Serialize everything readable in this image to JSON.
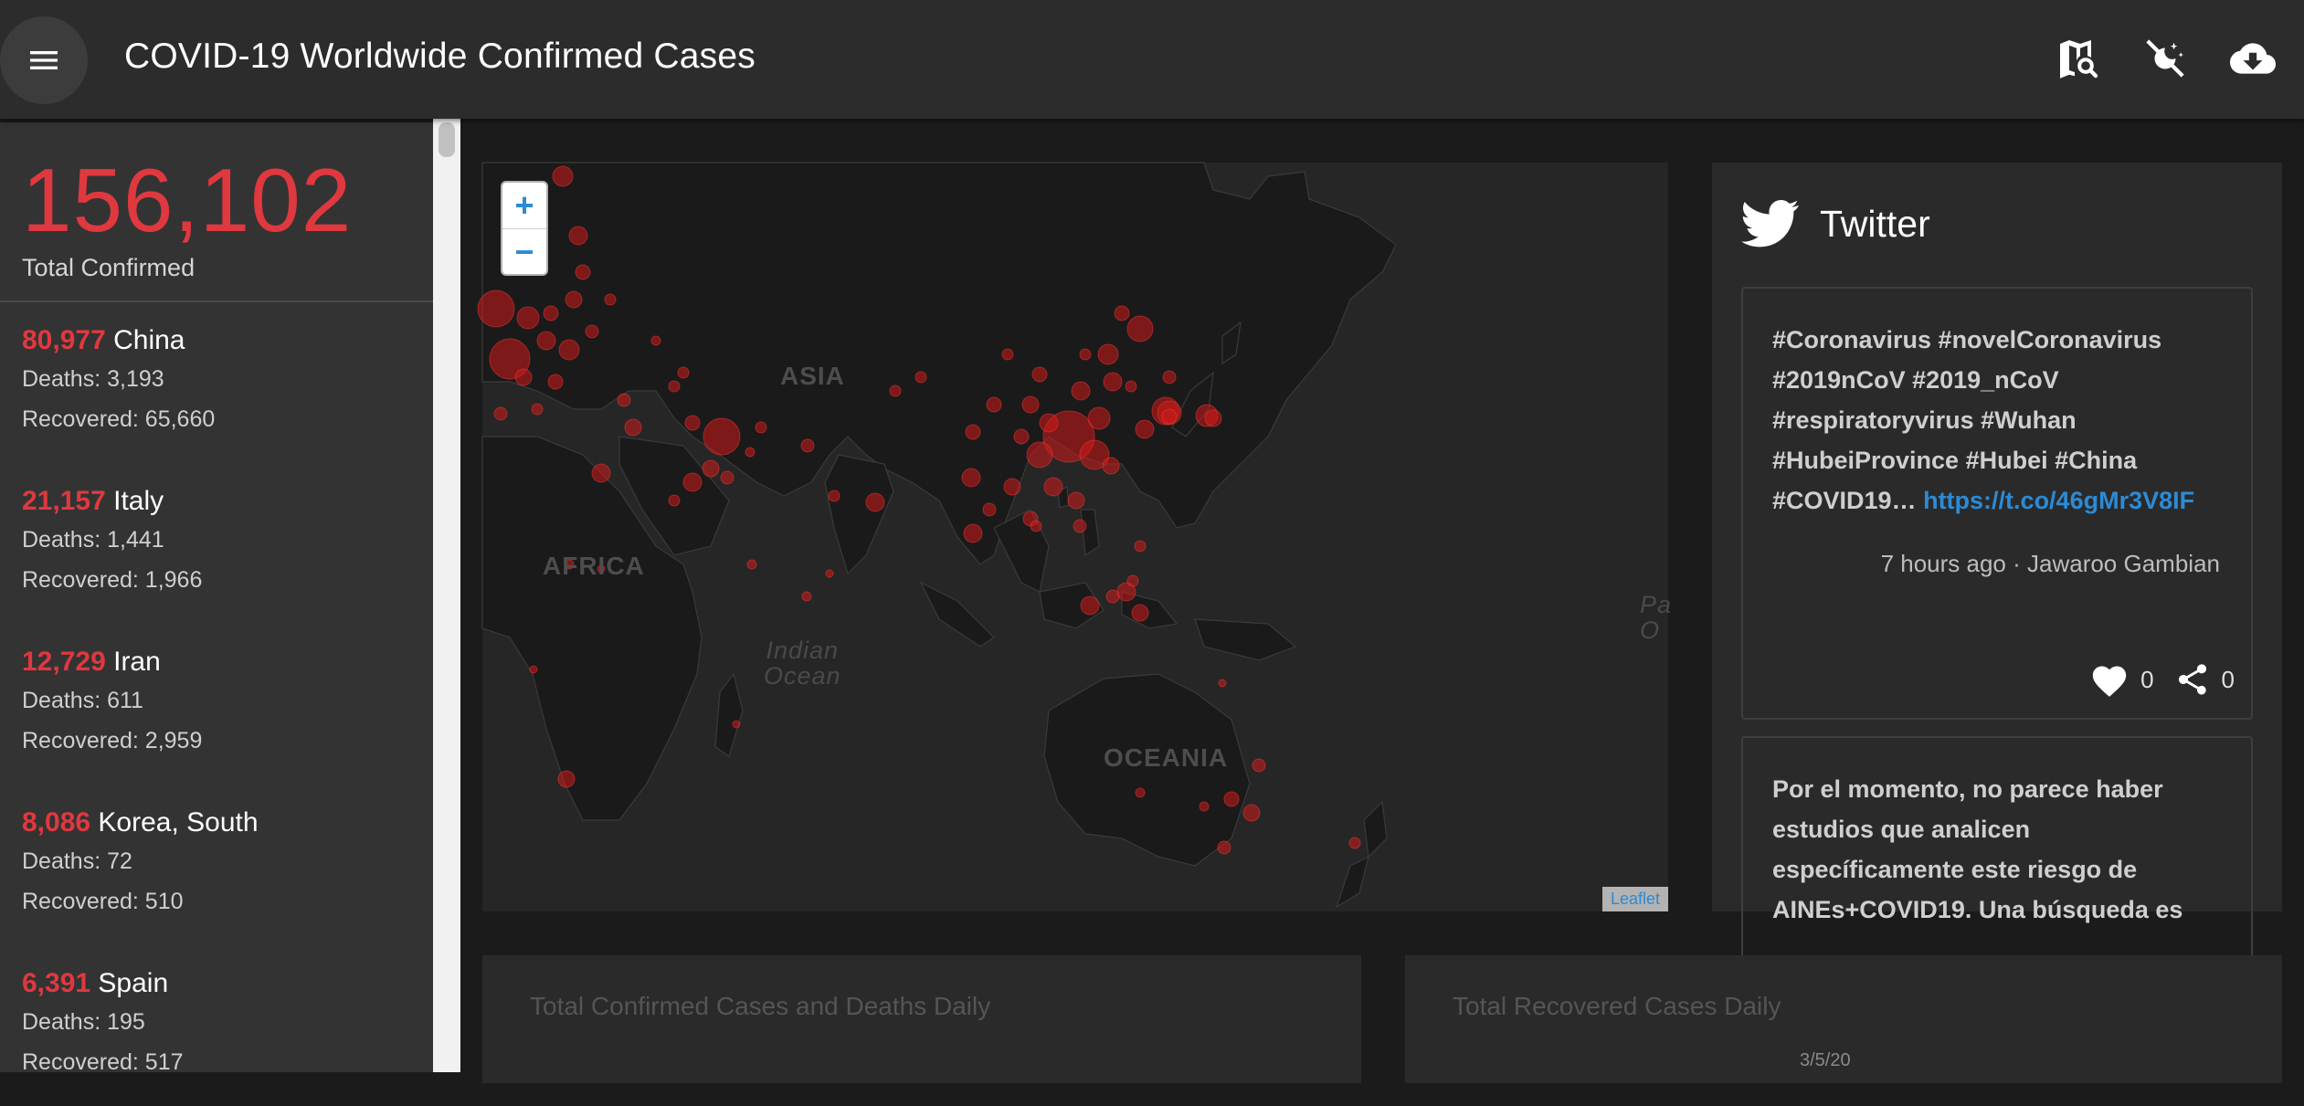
{
  "app": {
    "title": "COVID-19 Worldwide Confirmed Cases",
    "icons": [
      "menu-icon",
      "map-search-icon",
      "theme-toggle-icon",
      "cloud-download-icon"
    ]
  },
  "summary": {
    "total_value": "156,102",
    "total_label": "Total Confirmed"
  },
  "countries": [
    {
      "count": "80,977",
      "name": "China",
      "deaths": "Deaths: 3,193",
      "recovered": "Recovered: 65,660"
    },
    {
      "count": "21,157",
      "name": "Italy",
      "deaths": "Deaths: 1,441",
      "recovered": "Recovered: 1,966"
    },
    {
      "count": "12,729",
      "name": "Iran",
      "deaths": "Deaths: 611",
      "recovered": "Recovered: 2,959"
    },
    {
      "count": "8,086",
      "name": "Korea, South",
      "deaths": "Deaths: 72",
      "recovered": "Recovered: 510"
    },
    {
      "count": "6,391",
      "name": "Spain",
      "deaths": "Deaths: 195",
      "recovered": "Recovered: 517"
    }
  ],
  "map": {
    "zoom_in": "+",
    "zoom_out": "−",
    "attribution": "Leaflet",
    "labels": {
      "asia": "ASIA",
      "africa": "AFRICA",
      "oceania": "OCEANIA",
      "indian_ocean_1": "Indian",
      "indian_ocean_2": "Ocean",
      "pacific_1": "Pa",
      "pacific_2": "O"
    },
    "marker_color": "#d11a1a"
  },
  "twitter": {
    "title": "Twitter",
    "tweets": [
      {
        "text": "#Coronavirus #novelCoronavirus #2019nCoV #2019_nCoV #respiratoryvirus #Wuhan #HubeiProvince #Hubei #China #COVID19…",
        "link": "https://t.co/46gMr3V8IF",
        "meta": "7 hours ago · Jawaroo Gambian",
        "likes": "0",
        "shares": "0"
      },
      {
        "text": "Por el momento, no parece haber estudios que analicen específicamente este riesgo de AINEs+COVID19. Una búsqueda es"
      }
    ]
  },
  "charts": {
    "panel1_title": "Total Confirmed Cases and Deaths Daily",
    "panel2_title": "Total Recovered Cases Daily",
    "panel2_tick": "3/5/20"
  },
  "colors": {
    "accent_red": "#e0383f",
    "link_blue": "#2b8bd6",
    "appbar": "#2c2c2c",
    "sidebar": "#333333"
  }
}
